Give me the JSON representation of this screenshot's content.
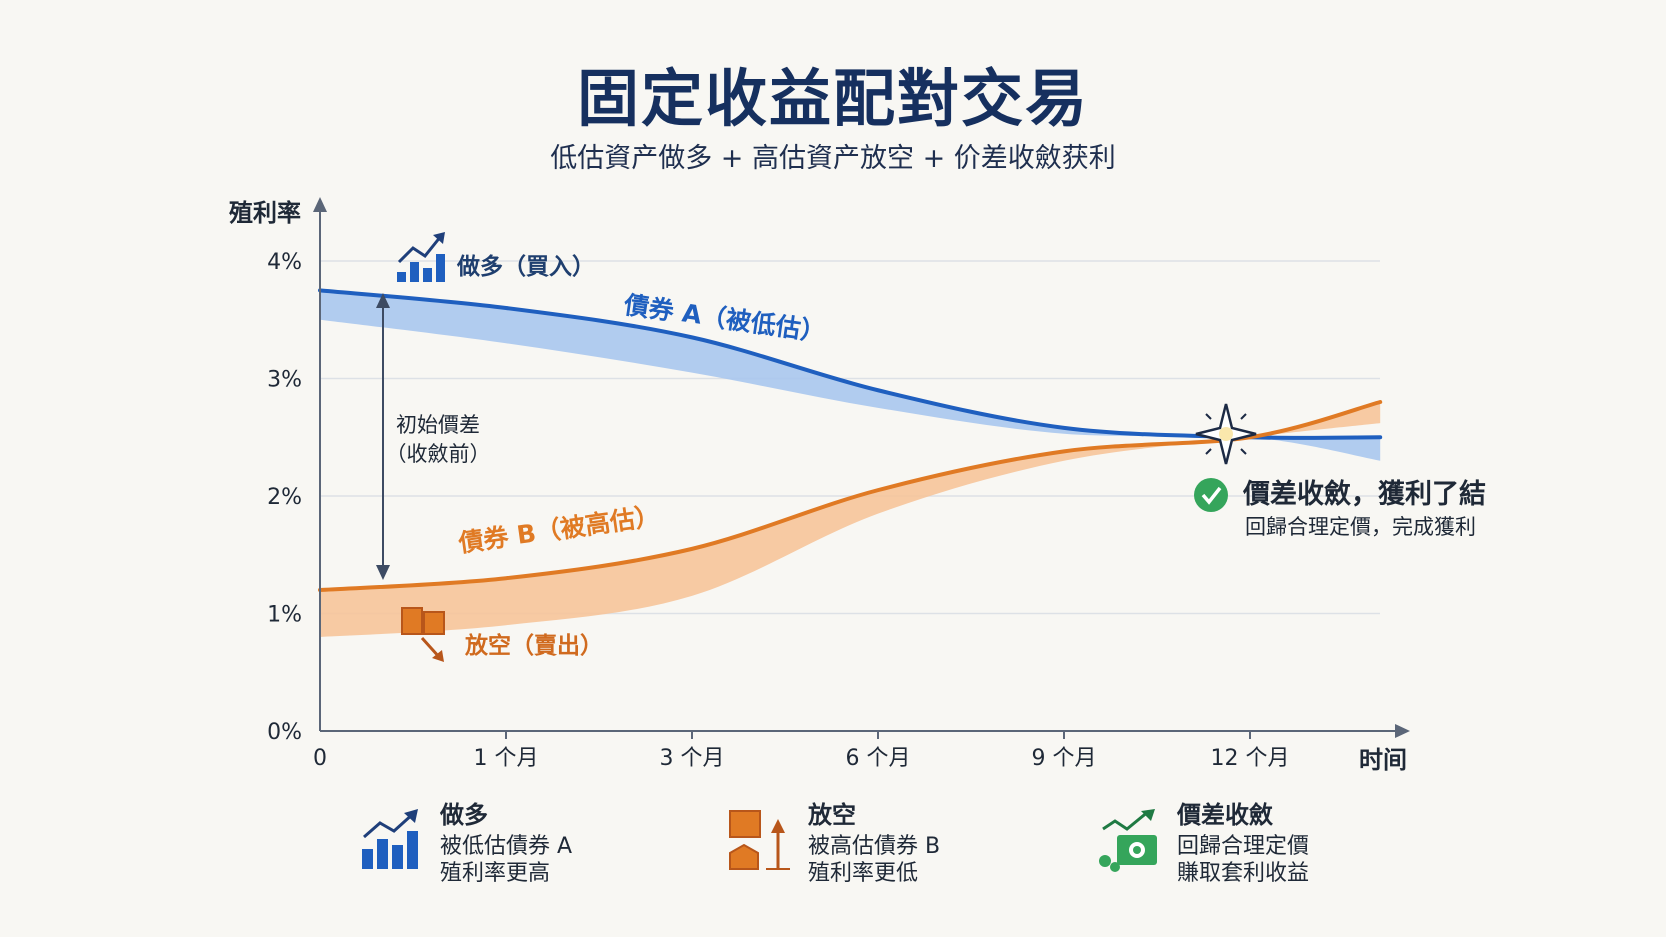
{
  "title": "固定收益配對交易",
  "subtitle": "低估資产做多 + 高估資产放空 + 价差收斂获利",
  "chart_data": {
    "type": "line",
    "ylabel": "殖利率",
    "xlabel": "时间",
    "ylim": [
      0,
      4
    ],
    "y_ticks": [
      "0%",
      "1%",
      "2%",
      "3%",
      "4%"
    ],
    "x_ticks": [
      "0",
      "1 个月",
      "3 个月",
      "6 个月",
      "9 个月",
      "12 个月"
    ],
    "x": [
      0,
      1,
      2,
      3,
      4,
      5,
      5.7
    ],
    "series": [
      {
        "name": "債券 A（被低估）",
        "color": "#1f5fbf",
        "values": [
          3.75,
          3.6,
          3.35,
          2.9,
          2.58,
          2.5,
          2.5
        ],
        "band_lower": [
          3.5,
          3.3,
          3.05,
          2.75,
          2.53,
          2.5,
          2.3
        ]
      },
      {
        "name": "債券 B（被高估）",
        "color": "#e07a24",
        "values": [
          1.2,
          1.3,
          1.55,
          2.05,
          2.38,
          2.5,
          2.8
        ],
        "band_lower": [
          0.8,
          0.9,
          1.15,
          1.85,
          2.3,
          2.5,
          2.62
        ]
      }
    ],
    "annotations": {
      "long_label": "做多（買入）",
      "short_label": "放空（賣出）",
      "spread_line1": "初始價差",
      "spread_line2": "（收斂前）",
      "converge_title": "價差收斂，獲利了結",
      "converge_sub": "回歸合理定價，完成獲利"
    }
  },
  "legend": [
    {
      "icon": "bar-chart-up-icon",
      "title": "做多",
      "line1": "被低估債券 A",
      "line2": "殖利率更高"
    },
    {
      "icon": "short-sell-icon",
      "title": "放空",
      "line1": "被高估債券 B",
      "line2": "殖利率更低"
    },
    {
      "icon": "money-convergence-icon",
      "title": "價差收斂",
      "line1": "回歸合理定價",
      "line2": "賺取套利收益"
    }
  ]
}
